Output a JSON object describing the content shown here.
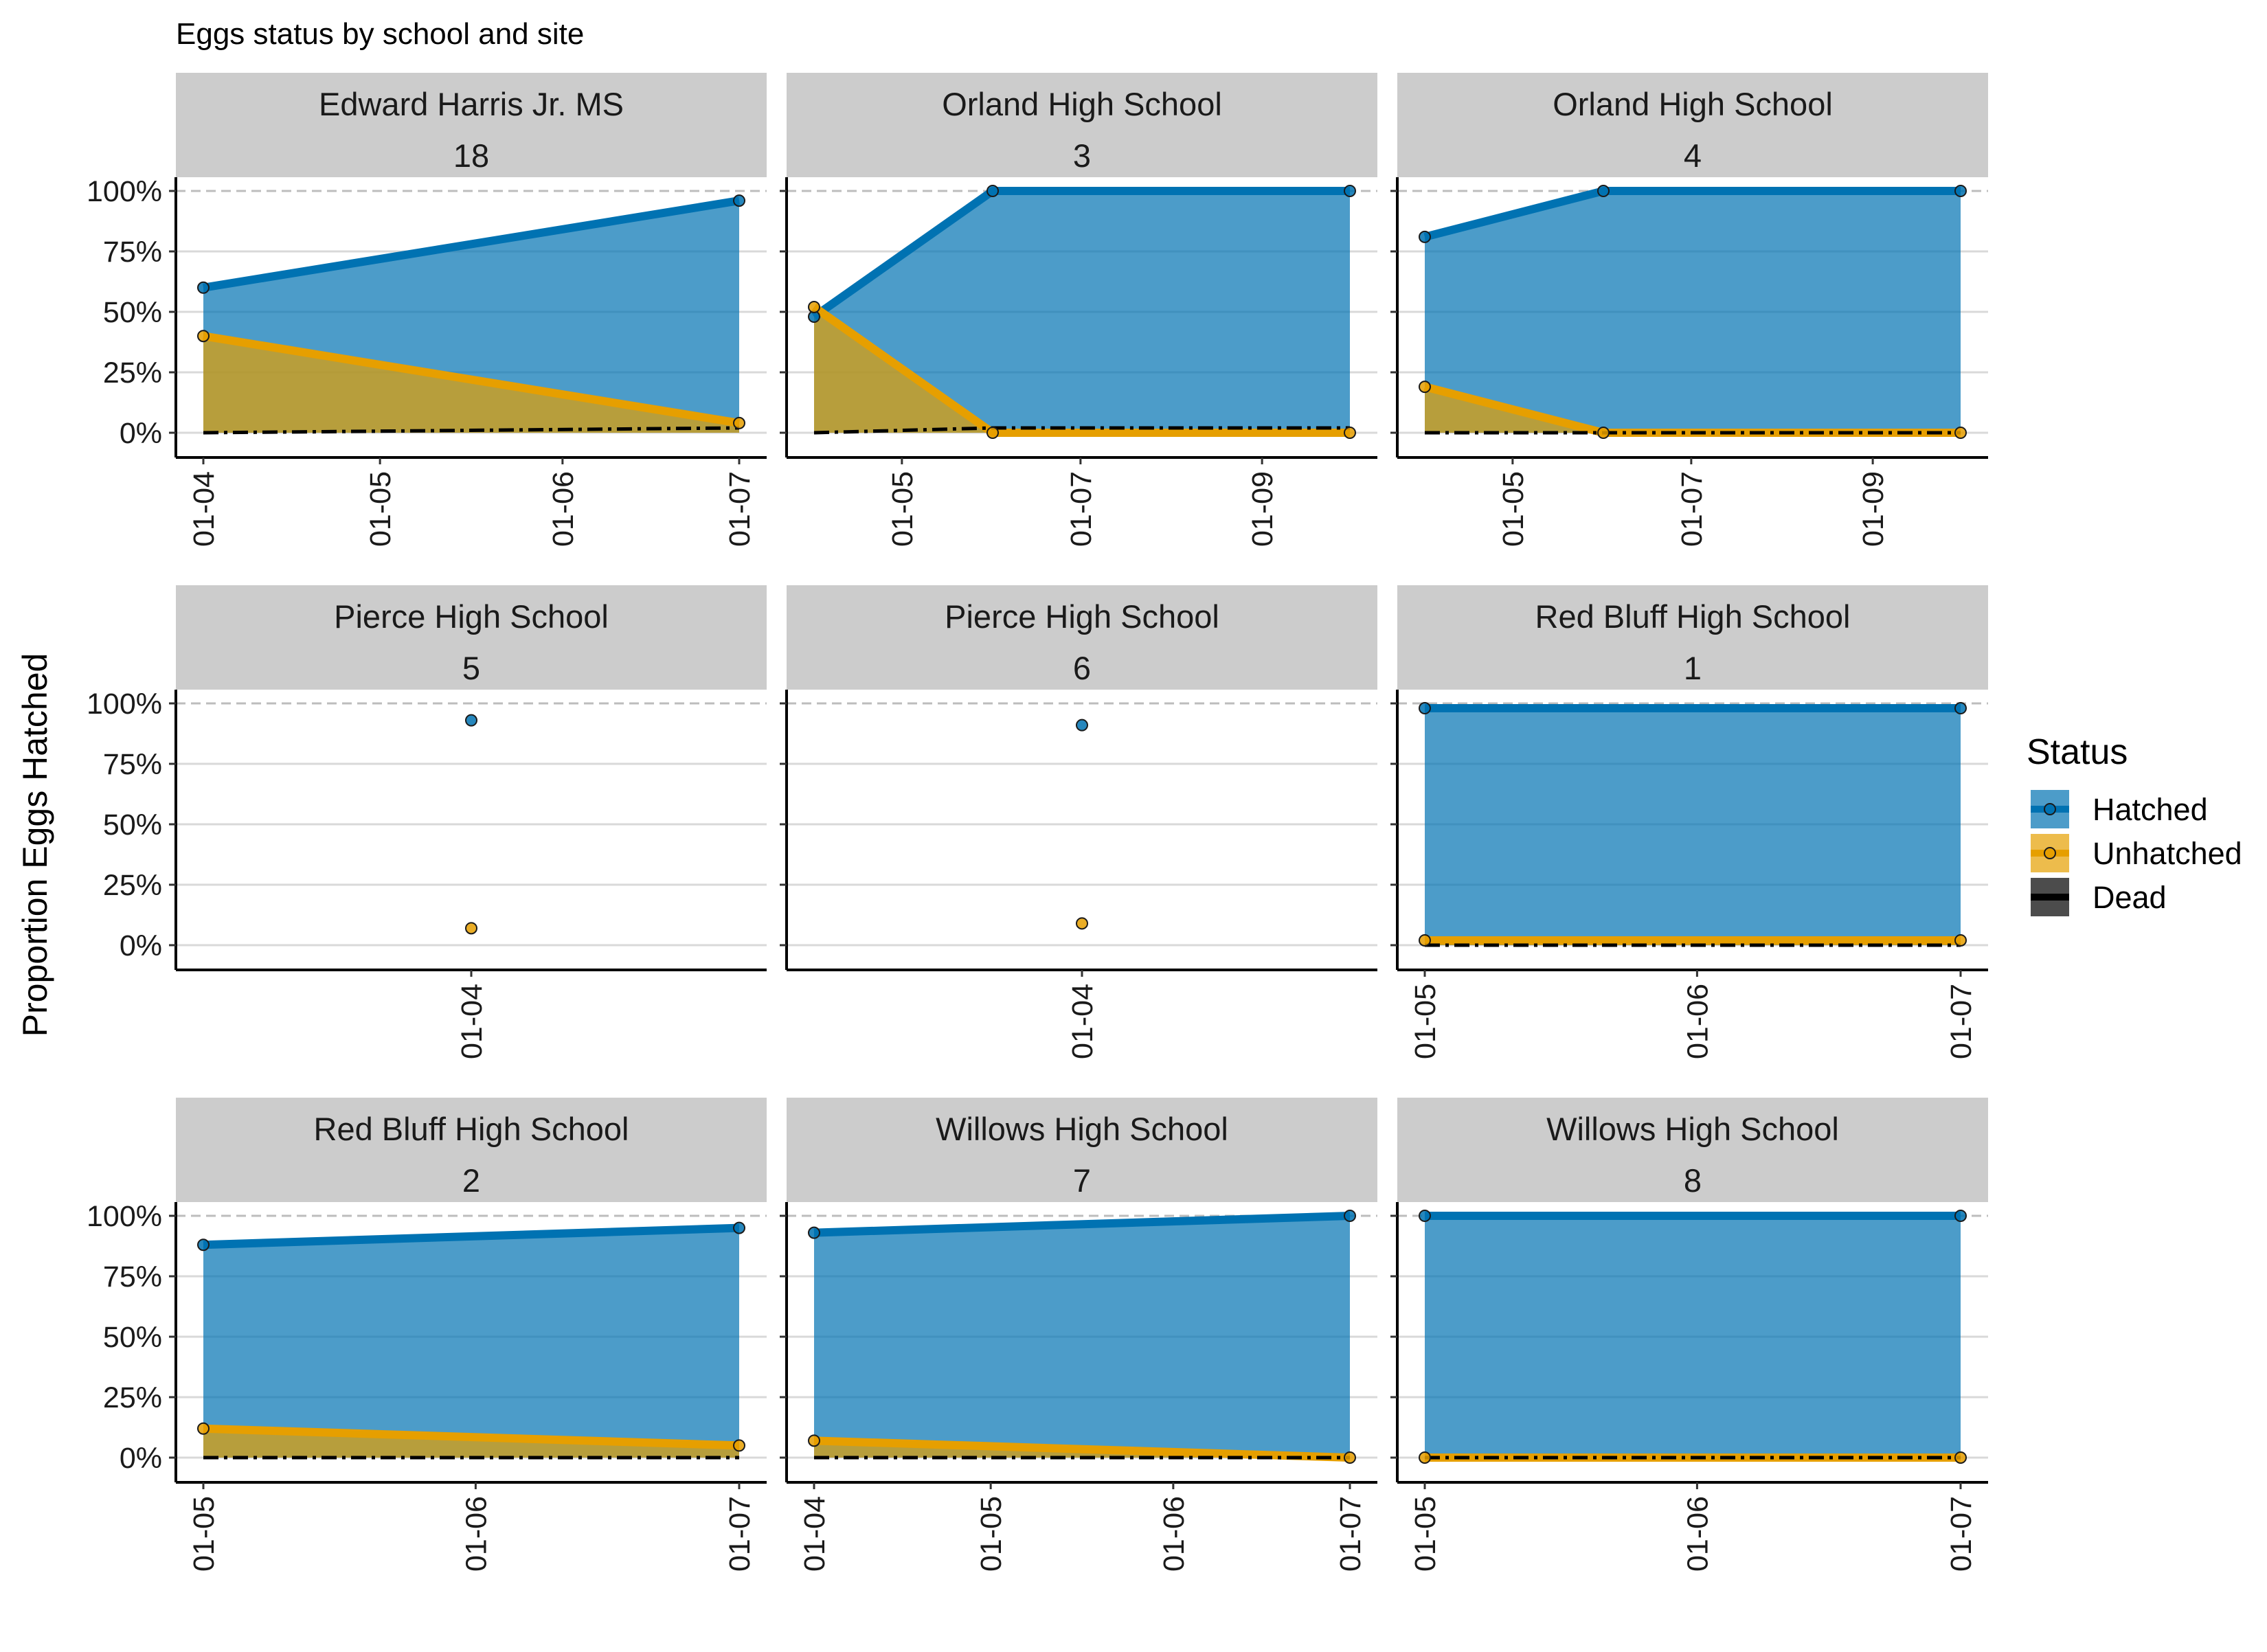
{
  "chart_data": {
    "type": "area",
    "title": "Eggs status by school and site",
    "ylabel": "Proportion Eggs Hatched",
    "xlabel": "",
    "ylim": [
      0,
      1
    ],
    "y_ticks": [
      "0%",
      "25%",
      "50%",
      "75%",
      "100%"
    ],
    "y_tick_values": [
      0,
      0.25,
      0.5,
      0.75,
      1
    ],
    "grid": true,
    "legend": {
      "title": "Status",
      "position": "right",
      "entries": [
        {
          "name": "Hatched",
          "color": "#0072B2"
        },
        {
          "name": "Unhatched",
          "color": "#E69F00"
        },
        {
          "name": "Dead",
          "color": "#000000"
        }
      ]
    },
    "panels": [
      {
        "school": "Edward Harris Jr. MS",
        "site": "18",
        "xlim": [
          "2024-04-01",
          "2024-07-01"
        ],
        "x_ticks": [
          [
            "2024-04-01",
            "01-04"
          ],
          [
            "2024-05-01",
            "01-05"
          ],
          [
            "2024-06-01",
            "01-06"
          ],
          [
            "2024-07-01",
            "01-07"
          ]
        ],
        "x": [
          "2024-04-01",
          "2024-07-01"
        ],
        "hatched": [
          0.6,
          0.96
        ],
        "unhatched": [
          0.4,
          0.04
        ],
        "dead": [
          0,
          0.02
        ]
      },
      {
        "school": "Orland High School",
        "site": "3",
        "xlim": [
          "2024-04-01",
          "2024-10-01"
        ],
        "x_ticks": [
          [
            "2024-05-01",
            "01-05"
          ],
          [
            "2024-07-01",
            "01-07"
          ],
          [
            "2024-09-01",
            "01-09"
          ]
        ],
        "x": [
          "2024-04-01",
          "2024-06-01",
          "2024-10-01"
        ],
        "hatched": [
          0.48,
          1.0,
          1.0
        ],
        "unhatched": [
          0.52,
          0.0,
          0.0
        ],
        "dead": [
          0,
          0.02,
          0.02
        ]
      },
      {
        "school": "Orland High School",
        "site": "4",
        "xlim": [
          "2024-04-01",
          "2024-10-01"
        ],
        "x_ticks": [
          [
            "2024-05-01",
            "01-05"
          ],
          [
            "2024-07-01",
            "01-07"
          ],
          [
            "2024-09-01",
            "01-09"
          ]
        ],
        "x": [
          "2024-04-01",
          "2024-06-01",
          "2024-10-01"
        ],
        "hatched": [
          0.81,
          1.0,
          1.0
        ],
        "unhatched": [
          0.19,
          0.0,
          0.0
        ],
        "dead": [
          0,
          0.0,
          0.0
        ]
      },
      {
        "school": "Pierce High School",
        "site": "5",
        "single_point": true,
        "x_ticks": [
          [
            "2024-04-01",
            "01-04"
          ]
        ],
        "x": [
          "2024-04-01"
        ],
        "hatched": [
          0.93
        ],
        "unhatched": [
          0.07
        ],
        "dead": [
          0
        ]
      },
      {
        "school": "Pierce High School",
        "site": "6",
        "single_point": true,
        "x_ticks": [
          [
            "2024-04-01",
            "01-04"
          ]
        ],
        "x": [
          "2024-04-01"
        ],
        "hatched": [
          0.91
        ],
        "unhatched": [
          0.09
        ],
        "dead": [
          0
        ]
      },
      {
        "school": "Red Bluff High School",
        "site": "1",
        "xlim": [
          "2024-05-01",
          "2024-07-01"
        ],
        "x_ticks": [
          [
            "2024-05-01",
            "01-05"
          ],
          [
            "2024-06-01",
            "01-06"
          ],
          [
            "2024-07-01",
            "01-07"
          ]
        ],
        "x": [
          "2024-05-01",
          "2024-07-01"
        ],
        "hatched": [
          0.98,
          0.98
        ],
        "unhatched": [
          0.02,
          0.02
        ],
        "dead": [
          0,
          0
        ]
      },
      {
        "school": "Red Bluff High School",
        "site": "2",
        "xlim": [
          "2024-05-01",
          "2024-07-01"
        ],
        "x_ticks": [
          [
            "2024-05-01",
            "01-05"
          ],
          [
            "2024-06-01",
            "01-06"
          ],
          [
            "2024-07-01",
            "01-07"
          ]
        ],
        "x": [
          "2024-05-01",
          "2024-07-01"
        ],
        "hatched": [
          0.88,
          0.95
        ],
        "unhatched": [
          0.12,
          0.05
        ],
        "dead": [
          0,
          0
        ]
      },
      {
        "school": "Willows High School",
        "site": "7",
        "xlim": [
          "2024-04-01",
          "2024-07-01"
        ],
        "x_ticks": [
          [
            "2024-04-01",
            "01-04"
          ],
          [
            "2024-05-01",
            "01-05"
          ],
          [
            "2024-06-01",
            "01-06"
          ],
          [
            "2024-07-01",
            "01-07"
          ]
        ],
        "x": [
          "2024-04-01",
          "2024-07-01"
        ],
        "hatched": [
          0.93,
          1.0
        ],
        "unhatched": [
          0.07,
          0.0
        ],
        "dead": [
          0,
          0
        ]
      },
      {
        "school": "Willows High School",
        "site": "8",
        "xlim": [
          "2024-05-01",
          "2024-07-01"
        ],
        "x_ticks": [
          [
            "2024-05-01",
            "01-05"
          ],
          [
            "2024-06-01",
            "01-06"
          ],
          [
            "2024-07-01",
            "01-07"
          ]
        ],
        "x": [
          "2024-05-01",
          "2024-07-01"
        ],
        "hatched": [
          1.0,
          1.0
        ],
        "unhatched": [
          0.0,
          0.0
        ],
        "dead": [
          0,
          0
        ]
      }
    ]
  }
}
